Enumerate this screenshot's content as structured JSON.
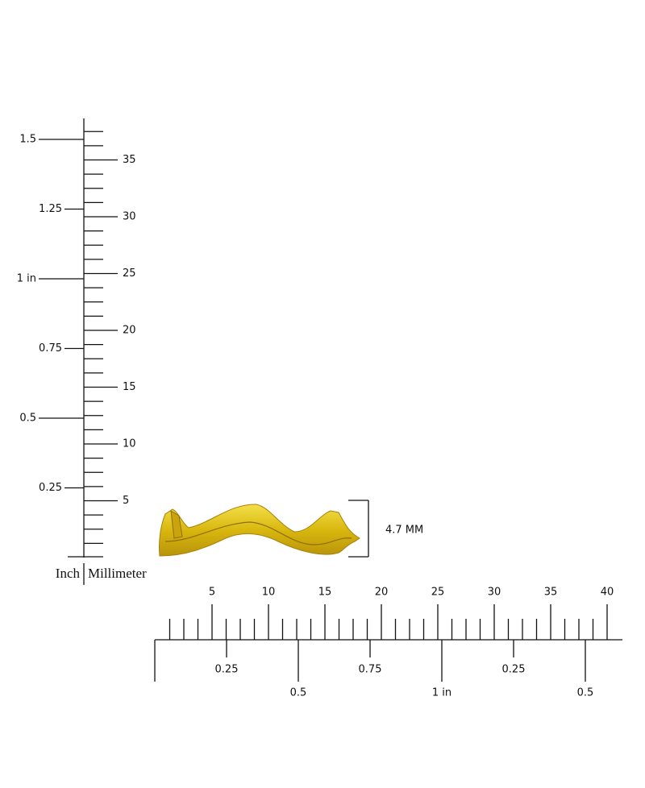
{
  "vertical_ruler": {
    "inch_labels": [
      "0.25",
      "0.5",
      "0.75",
      "1 in",
      "1.25",
      "1.5"
    ],
    "mm_labels": [
      "5",
      "10",
      "15",
      "20",
      "25",
      "30",
      "35"
    ],
    "inch_caption": "Inch",
    "mm_caption": "Millimeter"
  },
  "horizontal_ruler": {
    "mm_labels": [
      "5",
      "10",
      "15",
      "20",
      "25",
      "30",
      "35",
      "40"
    ],
    "inch_labels": [
      "0.25",
      "0.5",
      "0.75",
      "1 in",
      "0.25",
      "0.5"
    ]
  },
  "ring": {
    "height_label": "4.7 MM"
  }
}
